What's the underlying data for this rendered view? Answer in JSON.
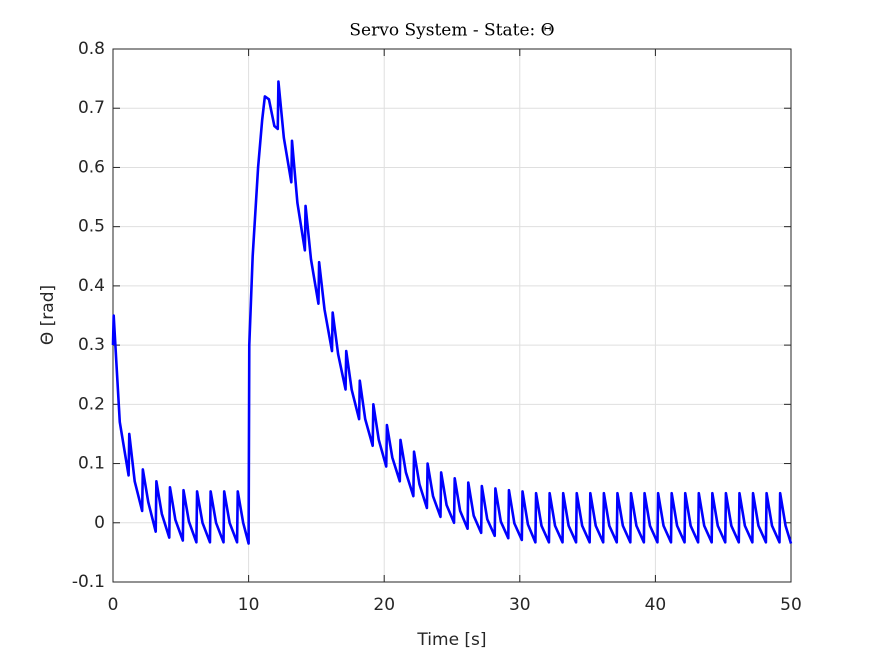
{
  "chart_data": {
    "type": "line",
    "title": "Servo System - State: Θ",
    "x_label": "Time [s]",
    "y_label": "Θ [rad]",
    "xlim": [
      0,
      50
    ],
    "ylim": [
      -0.1,
      0.8
    ],
    "xticks": [
      0,
      10,
      20,
      30,
      40,
      50
    ],
    "yticks": [
      -0.1,
      0,
      0.1,
      0.2,
      0.3,
      0.4,
      0.5,
      0.6,
      0.7,
      0.8
    ],
    "grid": true,
    "x": [
      0,
      0.05,
      0.5,
      1.15,
      1.2,
      1.6,
      2.15,
      2.2,
      2.6,
      3.15,
      3.2,
      3.6,
      4.15,
      4.2,
      4.6,
      5.15,
      5.2,
      5.6,
      6.15,
      6.2,
      6.6,
      7.15,
      7.2,
      7.6,
      8.15,
      8.2,
      8.6,
      9.15,
      9.2,
      9.6,
      10.0,
      10.05,
      10.3,
      10.7,
      11.0,
      11.2,
      11.5,
      11.9,
      12.15,
      12.2,
      12.6,
      13.15,
      13.2,
      13.6,
      14.15,
      14.2,
      14.6,
      15.15,
      15.2,
      15.6,
      16.15,
      16.2,
      16.6,
      17.15,
      17.2,
      17.6,
      18.15,
      18.2,
      18.6,
      19.15,
      19.2,
      19.6,
      20.15,
      20.2,
      20.6,
      21.15,
      21.2,
      21.6,
      22.15,
      22.2,
      22.6,
      23.15,
      23.2,
      23.6,
      24.15,
      24.2,
      24.6,
      25.15,
      25.2,
      25.6,
      26.15,
      26.2,
      26.6,
      27.15,
      27.2,
      27.6,
      28.15,
      28.2,
      28.6,
      29.15,
      29.2,
      29.6,
      30.15,
      30.2,
      30.6,
      31.15,
      31.2,
      31.6,
      32.15,
      32.2,
      32.6,
      33.15,
      33.2,
      33.6,
      34.15,
      34.2,
      34.6,
      35.15,
      35.2,
      35.6,
      36.15,
      36.2,
      36.6,
      37.15,
      37.2,
      37.6,
      38.15,
      38.2,
      38.6,
      39.15,
      39.2,
      39.6,
      40.15,
      40.2,
      40.6,
      41.15,
      41.2,
      41.6,
      42.15,
      42.2,
      42.6,
      43.15,
      43.2,
      43.6,
      44.15,
      44.2,
      44.6,
      45.15,
      45.2,
      45.6,
      46.15,
      46.2,
      46.6,
      47.15,
      47.2,
      47.6,
      48.15,
      48.2,
      48.6,
      49.15,
      49.2,
      49.6,
      50
    ],
    "series": [
      {
        "color": "#0000ff",
        "values": [
          0.3,
          0.35,
          0.17,
          0.08,
          0.15,
          0.07,
          0.02,
          0.09,
          0.035,
          -0.015,
          0.07,
          0.015,
          -0.025,
          0.06,
          0.005,
          -0.03,
          0.055,
          0.002,
          -0.033,
          0.053,
          0,
          -0.033,
          0.053,
          0,
          -0.033,
          0.053,
          0,
          -0.033,
          0.053,
          0,
          -0.035,
          0.3,
          0.45,
          0.6,
          0.68,
          0.72,
          0.715,
          0.67,
          0.665,
          0.745,
          0.65,
          0.575,
          0.645,
          0.54,
          0.46,
          0.535,
          0.445,
          0.37,
          0.44,
          0.36,
          0.29,
          0.355,
          0.285,
          0.225,
          0.29,
          0.225,
          0.175,
          0.24,
          0.175,
          0.13,
          0.2,
          0.14,
          0.095,
          0.165,
          0.11,
          0.07,
          0.14,
          0.085,
          0.045,
          0.12,
          0.065,
          0.025,
          0.1,
          0.045,
          0.01,
          0.085,
          0.03,
          0,
          0.075,
          0.02,
          -0.01,
          0.068,
          0.012,
          -0.017,
          0.062,
          0.006,
          -0.022,
          0.058,
          0.002,
          -0.026,
          0.055,
          -0.001,
          -0.029,
          0.053,
          -0.003,
          -0.033,
          0.05,
          -0.005,
          -0.033,
          0.05,
          -0.005,
          -0.033,
          0.05,
          -0.005,
          -0.033,
          0.05,
          -0.005,
          -0.033,
          0.05,
          -0.005,
          -0.033,
          0.05,
          -0.005,
          -0.033,
          0.05,
          -0.005,
          -0.033,
          0.05,
          -0.005,
          -0.033,
          0.05,
          -0.005,
          -0.033,
          0.05,
          -0.005,
          -0.033,
          0.05,
          -0.005,
          -0.033,
          0.05,
          -0.005,
          -0.033,
          0.05,
          -0.005,
          -0.033,
          0.05,
          -0.005,
          -0.033,
          0.05,
          -0.005,
          -0.033,
          0.05,
          -0.005,
          -0.033,
          0.05,
          -0.005,
          -0.033,
          0.05,
          -0.005,
          -0.033,
          0.05,
          -0.005,
          -0.035
        ]
      }
    ]
  }
}
